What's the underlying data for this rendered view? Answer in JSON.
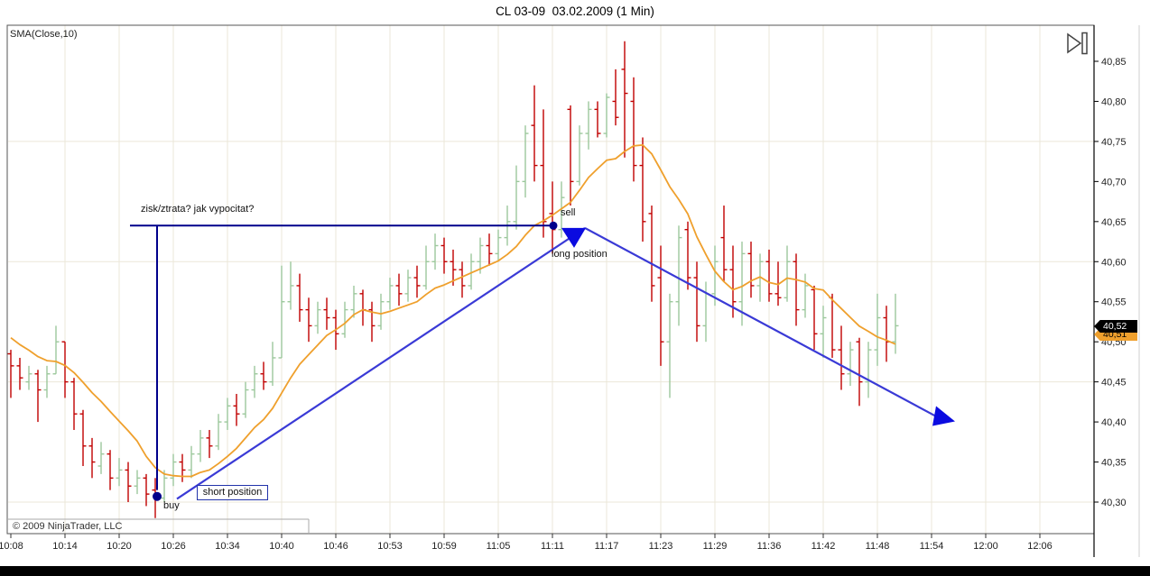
{
  "title": "CL 03-09  03.02.2009 (1 Min)",
  "indicator_label": "SMA(Close,10)",
  "copyright": "© 2009 NinjaTrader, LLC",
  "annotations": {
    "question": "zisk/ztrata? jak vypocitat?",
    "sell": "sell",
    "long_position": "long position",
    "buy": "buy",
    "short_position": "short position"
  },
  "price_tags": {
    "last": "40,52",
    "sma": "40,51"
  },
  "colors": {
    "up": "#9CC89C",
    "down": "#C00000",
    "sma": "#EFA02D",
    "grid": "#EBE7D9",
    "border": "#555555",
    "axis": "#000000",
    "navy": "#00008B",
    "trade_line": "#3A3AD6",
    "triangle": "#0B0BE0"
  },
  "chart_data": {
    "type": "bar",
    "style": "ohlc-bar",
    "symbol": "CL 03-09",
    "date": "03.02.2009",
    "interval": "1 Min",
    "indicator": "SMA(Close,10)",
    "xlabel": "time",
    "ylabel": "price",
    "x_labels": [
      "10:08",
      "10:14",
      "10:20",
      "10:26",
      "10:34",
      "10:40",
      "10:46",
      "10:53",
      "10:59",
      "11:05",
      "11:11",
      "11:17",
      "11:23",
      "11:29",
      "11:36",
      "11:42",
      "11:48",
      "11:54",
      "12:00",
      "12:06"
    ],
    "y_ticks": [
      40.85,
      40.8,
      40.75,
      40.7,
      40.65,
      40.6,
      40.55,
      40.5,
      40.45,
      40.4,
      40.35,
      40.3
    ],
    "h_gridlines": [
      40.75,
      40.6,
      40.45,
      40.3
    ],
    "ylim": [
      40.26,
      40.9
    ],
    "last_price": 40.52,
    "sma_value": 40.51,
    "sma_period": 10,
    "sma_seed": [
      40.54,
      40.53,
      40.52,
      40.51,
      40.51,
      40.5,
      40.5,
      40.49,
      40.48
    ],
    "bars": [
      [
        "10:08",
        40.485,
        40.49,
        40.43,
        40.47
      ],
      [
        "10:09",
        40.47,
        40.48,
        40.44,
        40.455
      ],
      [
        "10:10",
        40.45,
        40.47,
        40.44,
        40.46
      ],
      [
        "10:11",
        40.46,
        40.465,
        40.4,
        40.44
      ],
      [
        "10:12",
        40.44,
        40.47,
        40.43,
        40.46
      ],
      [
        "10:13",
        40.46,
        40.52,
        40.46,
        40.5
      ],
      [
        "10:14",
        40.5,
        40.5,
        40.43,
        40.45
      ],
      [
        "10:15",
        40.45,
        40.455,
        40.39,
        40.41
      ],
      [
        "10:16",
        40.41,
        40.415,
        40.345,
        40.37
      ],
      [
        "10:17",
        40.37,
        40.38,
        40.33,
        40.35
      ],
      [
        "10:18",
        40.345,
        40.375,
        40.335,
        40.36
      ],
      [
        "10:19",
        40.36,
        40.365,
        40.315,
        40.33
      ],
      [
        "10:20",
        40.33,
        40.355,
        40.32,
        40.34
      ],
      [
        "10:21",
        40.34,
        40.35,
        40.3,
        40.32
      ],
      [
        "10:22",
        40.32,
        40.34,
        40.31,
        40.33
      ],
      [
        "10:23",
        40.33,
        40.335,
        40.295,
        40.31
      ],
      [
        "10:24",
        40.315,
        40.33,
        40.28,
        40.31
      ],
      [
        "10:25",
        40.305,
        40.34,
        40.3,
        40.33
      ],
      [
        "10:26",
        40.33,
        40.36,
        40.32,
        40.35
      ],
      [
        "10:27",
        40.35,
        40.36,
        40.325,
        40.34
      ],
      [
        "10:28",
        40.34,
        40.37,
        40.33,
        40.36
      ],
      [
        "10:29",
        40.36,
        40.39,
        40.35,
        40.38
      ],
      [
        "10:32",
        40.38,
        40.39,
        40.355,
        40.37
      ],
      [
        "10:33",
        40.37,
        40.41,
        40.365,
        40.4
      ],
      [
        "10:34",
        40.4,
        40.43,
        40.39,
        40.42
      ],
      [
        "10:35",
        40.42,
        40.435,
        40.395,
        40.41
      ],
      [
        "10:36",
        40.41,
        40.45,
        40.405,
        40.44
      ],
      [
        "10:37",
        40.44,
        40.47,
        40.43,
        40.46
      ],
      [
        "10:38",
        40.46,
        40.475,
        40.44,
        40.45
      ],
      [
        "10:39",
        40.45,
        40.5,
        40.445,
        40.48
      ],
      [
        "10:40",
        40.48,
        40.595,
        40.48,
        40.55
      ],
      [
        "10:41",
        40.55,
        40.6,
        40.54,
        40.57
      ],
      [
        "10:42",
        40.57,
        40.585,
        40.525,
        40.54
      ],
      [
        "10:43",
        40.54,
        40.555,
        40.5,
        40.52
      ],
      [
        "10:44",
        40.52,
        40.55,
        40.51,
        40.54
      ],
      [
        "10:45",
        40.54,
        40.555,
        40.515,
        40.53
      ],
      [
        "10:46",
        40.53,
        40.54,
        40.49,
        40.51
      ],
      [
        "10:47",
        40.51,
        40.55,
        40.505,
        40.54
      ],
      [
        "10:48",
        40.54,
        40.57,
        40.53,
        40.56
      ],
      [
        "10:49",
        40.56,
        40.565,
        40.52,
        40.54
      ],
      [
        "10:50",
        40.54,
        40.55,
        40.5,
        40.52
      ],
      [
        "10:52",
        40.52,
        40.56,
        40.515,
        40.55
      ],
      [
        "10:53",
        40.55,
        40.58,
        40.54,
        40.57
      ],
      [
        "10:54",
        40.57,
        40.585,
        40.545,
        40.56
      ],
      [
        "10:55",
        40.56,
        40.59,
        40.55,
        40.58
      ],
      [
        "10:56",
        40.58,
        40.595,
        40.555,
        40.57
      ],
      [
        "10:57",
        40.57,
        40.62,
        40.565,
        40.6
      ],
      [
        "10:58",
        40.6,
        40.635,
        40.59,
        40.62
      ],
      [
        "10:59",
        40.62,
        40.63,
        40.585,
        40.6
      ],
      [
        "11:00",
        40.6,
        40.615,
        40.57,
        40.59
      ],
      [
        "11:01",
        40.59,
        40.6,
        40.555,
        40.57
      ],
      [
        "11:02",
        40.57,
        40.61,
        40.565,
        40.6
      ],
      [
        "11:03",
        40.6,
        40.63,
        40.585,
        40.62
      ],
      [
        "11:04",
        40.62,
        40.635,
        40.595,
        40.61
      ],
      [
        "11:05",
        40.61,
        40.64,
        40.6,
        40.63
      ],
      [
        "11:06",
        40.63,
        40.67,
        40.62,
        40.65
      ],
      [
        "11:07",
        40.65,
        40.72,
        40.64,
        40.7
      ],
      [
        "11:08",
        40.7,
        40.77,
        40.68,
        40.76
      ],
      [
        "11:09",
        40.77,
        40.82,
        40.7,
        40.72
      ],
      [
        "11:10",
        40.72,
        40.79,
        40.63,
        40.65
      ],
      [
        "11:11",
        40.66,
        40.7,
        40.61,
        40.64
      ],
      [
        "11:12",
        40.64,
        40.7,
        40.63,
        40.68
      ],
      [
        "11:13",
        40.79,
        40.795,
        40.67,
        40.7
      ],
      [
        "11:14",
        40.7,
        40.77,
        40.695,
        40.76
      ],
      [
        "11:15",
        40.76,
        40.8,
        40.74,
        40.79
      ],
      [
        "11:16",
        40.79,
        40.8,
        40.755,
        40.76
      ],
      [
        "11:17",
        40.76,
        40.81,
        40.755,
        40.805
      ],
      [
        "11:18",
        40.8,
        40.84,
        40.77,
        40.78
      ],
      [
        "11:19",
        40.84,
        40.875,
        40.73,
        40.81
      ],
      [
        "11:20",
        40.8,
        40.83,
        40.7,
        40.72
      ],
      [
        "11:21",
        40.72,
        40.755,
        40.625,
        40.65
      ],
      [
        "11:22",
        40.66,
        40.67,
        40.55,
        40.57
      ],
      [
        "11:23",
        40.58,
        40.62,
        40.47,
        40.5
      ],
      [
        "11:24",
        40.5,
        40.56,
        40.43,
        40.55
      ],
      [
        "11:25",
        40.55,
        40.645,
        40.52,
        40.63
      ],
      [
        "11:26",
        40.64,
        40.65,
        40.565,
        40.58
      ],
      [
        "11:27",
        40.58,
        40.6,
        40.5,
        40.52
      ],
      [
        "11:28",
        40.52,
        40.575,
        40.5,
        40.56
      ],
      [
        "11:29",
        40.56,
        40.62,
        40.545,
        40.6
      ],
      [
        "11:30",
        40.63,
        40.67,
        40.575,
        40.59
      ],
      [
        "11:31",
        40.59,
        40.62,
        40.53,
        40.55
      ],
      [
        "11:32",
        40.55,
        40.625,
        40.52,
        40.61
      ],
      [
        "11:33",
        40.61,
        40.625,
        40.555,
        40.57
      ],
      [
        "11:34",
        40.57,
        40.61,
        40.55,
        40.6
      ],
      [
        "11:36",
        40.6,
        40.615,
        40.55,
        40.56
      ],
      [
        "11:37",
        40.56,
        40.6,
        40.545,
        40.555
      ],
      [
        "11:38",
        40.555,
        40.62,
        40.55,
        40.6
      ],
      [
        "11:39",
        40.6,
        40.61,
        40.52,
        40.54
      ],
      [
        "11:40",
        40.54,
        40.585,
        40.53,
        40.57
      ],
      [
        "11:41",
        40.565,
        40.57,
        40.49,
        40.51
      ],
      [
        "11:42",
        40.51,
        40.545,
        40.48,
        40.53
      ],
      [
        "11:43",
        40.555,
        40.56,
        40.48,
        40.49
      ],
      [
        "11:44",
        40.49,
        40.52,
        40.44,
        40.46
      ],
      [
        "11:45",
        40.46,
        40.5,
        40.445,
        40.49
      ],
      [
        "11:46",
        40.5,
        40.505,
        40.42,
        40.45
      ],
      [
        "11:47",
        40.45,
        40.5,
        40.43,
        40.49
      ],
      [
        "11:48",
        40.49,
        40.56,
        40.47,
        40.53
      ],
      [
        "11:49",
        40.53,
        40.545,
        40.475,
        40.5
      ],
      [
        "11:50",
        40.5,
        40.56,
        40.485,
        40.52
      ]
    ],
    "trade_markers": {
      "buy": {
        "bar": 16.2,
        "price": 40.31,
        "label": "buy"
      },
      "sell": {
        "bar": 60,
        "price": 40.645,
        "label": "sell"
      }
    },
    "overlays": {
      "measure_h_line": {
        "from_bar": 13.2,
        "to_bar": 60,
        "price": 40.645
      },
      "measure_v_line": {
        "bar": 16.2,
        "from_price": 40.645,
        "to_price": 40.315
      },
      "long_line": {
        "from": {
          "bar": 18.4,
          "price": 40.304
        },
        "to": {
          "bar": 63.6,
          "price": 40.642
        }
      },
      "exit_line": {
        "from": {
          "bar": 63.6,
          "price": 40.642
        },
        "to": {
          "bar": 103,
          "price": 40.404
        }
      },
      "entry_dot": {
        "bar": 16.2,
        "price": 40.307
      },
      "exit_dot": {
        "bar": 60.1,
        "price": 40.645
      },
      "down_triangle": {
        "bar": 62.3,
        "price": 40.642
      },
      "end_arrow": {
        "bar": 103,
        "price": 40.404
      }
    }
  }
}
